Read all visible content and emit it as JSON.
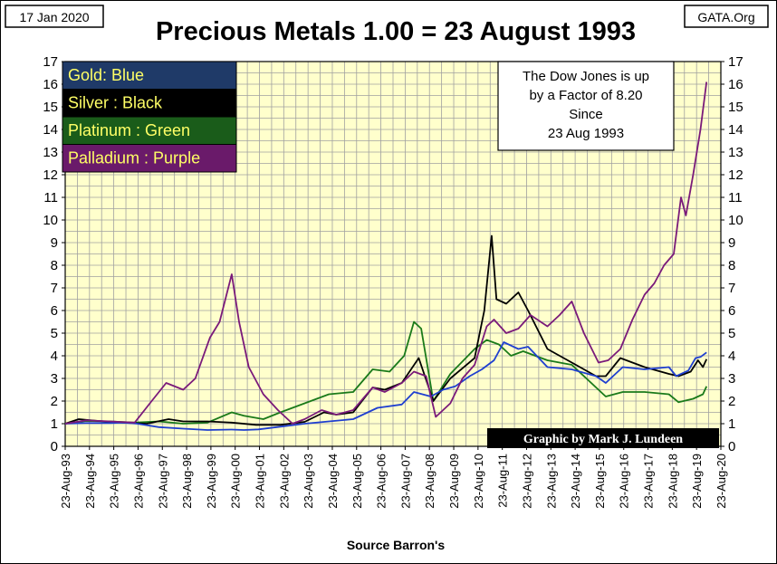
{
  "header": {
    "date": "17 Jan 2020",
    "source_badge": "GATA.Org"
  },
  "chart_data": {
    "type": "line",
    "title": "Precious Metals  1.00 = 23 August 1993",
    "xlabel": "Source Barron's",
    "ylabel": "",
    "ylim": [
      0,
      17
    ],
    "xlim": [
      1993.64,
      2020.64
    ],
    "yticks": [
      "0",
      "1",
      "2",
      "3",
      "4",
      "5",
      "6",
      "7",
      "8",
      "9",
      "10",
      "11",
      "12",
      "13",
      "14",
      "15",
      "16",
      "17"
    ],
    "xticks": [
      "23-Aug-93",
      "23-Aug-94",
      "23-Aug-95",
      "23-Aug-96",
      "23-Aug-97",
      "23-Aug-98",
      "23-Aug-99",
      "23-Aug-00",
      "23-Aug-01",
      "23-Aug-02",
      "23-Aug-03",
      "23-Aug-04",
      "23-Aug-05",
      "23-Aug-06",
      "23-Aug-07",
      "23-Aug-08",
      "23-Aug-09",
      "23-Aug-10",
      "23-Aug-11",
      "23-Aug-12",
      "23-Aug-13",
      "23-Aug-14",
      "23-Aug-15",
      "23-Aug-16",
      "23-Aug-17",
      "23-Aug-18",
      "23-Aug-19",
      "23-Aug-20"
    ],
    "grid": true,
    "legend": {
      "placement": "top-left",
      "entries": [
        {
          "label": "Gold: Blue",
          "bg": "#1f3a68",
          "text_color": "#ffff66"
        },
        {
          "label": "Silver : Black",
          "bg": "#000000",
          "text_color": "#ffff66"
        },
        {
          "label": "Platinum : Green",
          "bg": "#1a5c1a",
          "text_color": "#ffff66"
        },
        {
          "label": "Palladium : Purple",
          "bg": "#6a1a6a",
          "text_color": "#ffff66"
        }
      ]
    },
    "annotation_box": [
      "The Dow Jones is up",
      "by a Factor of 8.20",
      "Since",
      "23 Aug 1993"
    ],
    "credit": "Graphic by Mark J. Lundeen",
    "colors": {
      "plot_bg": "#ffffcc",
      "grid": "#a0a0a0",
      "gold": "#1f3fd0",
      "silver": "#000000",
      "platinum": "#1a7a1a",
      "palladium": "#7a1a7a"
    },
    "series": [
      {
        "name": "Gold",
        "color_key": "gold",
        "x": [
          1993.64,
          1994.5,
          1995.5,
          1996.0,
          1996.6,
          1997.5,
          1998.5,
          1999.5,
          2000.5,
          2001.0,
          2001.6,
          2002.5,
          2003.5,
          2004.5,
          2005.5,
          2006.5,
          2007.5,
          2008.0,
          2008.7,
          2009.2,
          2009.7,
          2010.3,
          2010.8,
          2011.3,
          2011.7,
          2012.3,
          2012.7,
          2013.5,
          2014.5,
          2015.5,
          2015.9,
          2016.6,
          2017.5,
          2018.5,
          2018.8,
          2019.3,
          2019.6,
          2019.8,
          2020.05
        ],
        "y": [
          1.0,
          1.03,
          1.03,
          1.05,
          1.0,
          0.85,
          0.78,
          0.72,
          0.74,
          0.72,
          0.75,
          0.87,
          1.0,
          1.1,
          1.2,
          1.7,
          1.85,
          2.4,
          2.2,
          2.5,
          2.65,
          3.1,
          3.4,
          3.8,
          4.6,
          4.3,
          4.4,
          3.5,
          3.4,
          3.1,
          2.8,
          3.5,
          3.4,
          3.5,
          3.1,
          3.35,
          3.9,
          3.95,
          4.15
        ]
      },
      {
        "name": "Silver",
        "color_key": "silver",
        "x": [
          1993.64,
          1994.2,
          1995.0,
          1996.0,
          1997.0,
          1997.9,
          1998.5,
          1999.5,
          2000.5,
          2001.5,
          2002.5,
          2003.5,
          2004.3,
          2004.8,
          2005.5,
          2006.3,
          2006.8,
          2007.5,
          2008.2,
          2008.8,
          2009.5,
          2010.5,
          2010.9,
          2011.2,
          2011.4,
          2011.8,
          2012.3,
          2012.7,
          2013.5,
          2014.5,
          2015.5,
          2015.9,
          2016.5,
          2017.5,
          2018.5,
          2018.9,
          2019.4,
          2019.7,
          2019.9,
          2020.05
        ],
        "y": [
          1.0,
          1.2,
          1.12,
          1.05,
          1.0,
          1.2,
          1.1,
          1.1,
          1.05,
          0.95,
          0.95,
          1.08,
          1.5,
          1.4,
          1.5,
          2.6,
          2.5,
          2.8,
          3.9,
          2.0,
          3.0,
          3.9,
          6.0,
          9.3,
          6.5,
          6.3,
          6.8,
          6.0,
          4.3,
          3.7,
          3.1,
          3.1,
          3.9,
          3.5,
          3.2,
          3.1,
          3.3,
          3.8,
          3.5,
          3.85
        ]
      },
      {
        "name": "Platinum",
        "color_key": "platinum",
        "x": [
          1993.64,
          1994.5,
          1995.5,
          1996.5,
          1997.5,
          1998.5,
          1999.5,
          2000.5,
          2001.0,
          2001.8,
          2002.5,
          2003.5,
          2004.5,
          2005.5,
          2006.3,
          2007.0,
          2007.6,
          2008.0,
          2008.3,
          2008.8,
          2009.5,
          2010.5,
          2011.0,
          2011.5,
          2012.0,
          2012.5,
          2013.5,
          2014.5,
          2015.5,
          2015.9,
          2016.6,
          2017.5,
          2018.5,
          2018.9,
          2019.5,
          2019.9,
          2020.05
        ],
        "y": [
          1.0,
          1.12,
          1.1,
          1.05,
          1.1,
          1.0,
          1.05,
          1.5,
          1.35,
          1.2,
          1.5,
          1.9,
          2.3,
          2.4,
          3.4,
          3.3,
          4.0,
          5.5,
          5.2,
          2.0,
          3.2,
          4.3,
          4.7,
          4.5,
          4.0,
          4.2,
          3.8,
          3.6,
          2.6,
          2.2,
          2.4,
          2.4,
          2.3,
          1.95,
          2.1,
          2.3,
          2.65
        ]
      },
      {
        "name": "Palladium",
        "color_key": "palladium",
        "x": [
          1993.64,
          1994.5,
          1995.5,
          1996.5,
          1997.2,
          1997.8,
          1998.5,
          1999.0,
          1999.6,
          2000.0,
          2000.5,
          2000.8,
          2001.2,
          2001.8,
          2002.4,
          2003.0,
          2003.5,
          2004.2,
          2004.8,
          2005.5,
          2006.3,
          2006.8,
          2007.5,
          2008.0,
          2008.5,
          2008.9,
          2009.5,
          2010.0,
          2010.5,
          2011.0,
          2011.3,
          2011.8,
          2012.3,
          2012.8,
          2013.5,
          2014.0,
          2014.5,
          2015.0,
          2015.6,
          2016.0,
          2016.5,
          2017.0,
          2017.5,
          2017.9,
          2018.3,
          2018.7,
          2019.0,
          2019.2,
          2019.5,
          2019.8,
          2020.05
        ],
        "y": [
          1.0,
          1.15,
          1.1,
          1.05,
          2.0,
          2.8,
          2.5,
          3.0,
          4.8,
          5.5,
          7.6,
          5.5,
          3.5,
          2.3,
          1.6,
          1.0,
          1.2,
          1.6,
          1.4,
          1.6,
          2.6,
          2.4,
          2.8,
          3.3,
          3.1,
          1.3,
          1.9,
          3.0,
          3.6,
          5.3,
          5.6,
          5.0,
          5.2,
          5.8,
          5.3,
          5.8,
          6.4,
          5.0,
          3.7,
          3.8,
          4.3,
          5.6,
          6.7,
          7.2,
          8.0,
          8.5,
          11.0,
          10.2,
          12.0,
          14.0,
          16.1
        ]
      }
    ]
  }
}
